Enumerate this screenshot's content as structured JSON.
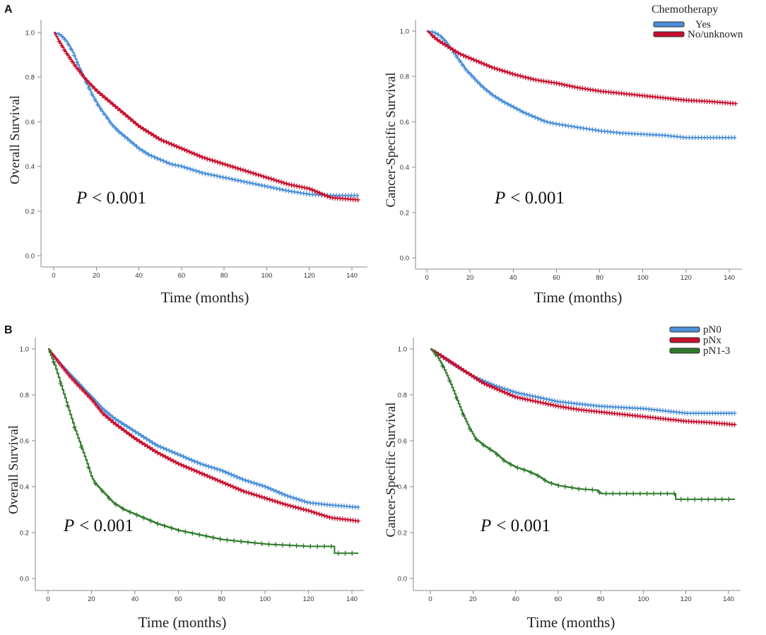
{
  "panels": [
    {
      "label": "A",
      "legend_title": "Chemotherapy"
    },
    {
      "label": "B"
    }
  ],
  "chart_data": [
    {
      "type": "line",
      "title": "",
      "xlabel": "Time (months)",
      "ylabel": "Overall Survival",
      "xlim": [
        0,
        140
      ],
      "ylim": [
        0,
        1
      ],
      "xticks": [
        0,
        20,
        40,
        60,
        80,
        100,
        120,
        140
      ],
      "xtick_labels": [
        "0",
        "20",
        "40",
        "60",
        "80",
        "100",
        "120",
        "140"
      ],
      "yticks": [
        0,
        0.2,
        0.4,
        0.6,
        0.8,
        1.0
      ],
      "ytick_labels": [
        "0.0",
        "0.2",
        "0.4",
        "0.6",
        "0.8",
        "1.0"
      ],
      "annotation": {
        "symbol": "P",
        "value": "< 0.001"
      },
      "series": [
        {
          "name": "Yes",
          "color": "#4b8fd8",
          "x": [
            0,
            3,
            6,
            9,
            12,
            15,
            18,
            21,
            24,
            27,
            30,
            35,
            40,
            45,
            50,
            55,
            60,
            70,
            80,
            90,
            100,
            110,
            120,
            130,
            143
          ],
          "y": [
            1.0,
            0.99,
            0.96,
            0.91,
            0.84,
            0.78,
            0.72,
            0.67,
            0.63,
            0.59,
            0.56,
            0.52,
            0.48,
            0.45,
            0.43,
            0.41,
            0.4,
            0.37,
            0.35,
            0.33,
            0.31,
            0.29,
            0.275,
            0.27,
            0.27
          ]
        },
        {
          "name": "No/unknown",
          "color": "#c8102e",
          "x": [
            0,
            5,
            10,
            15,
            20,
            25,
            30,
            40,
            50,
            60,
            70,
            80,
            90,
            100,
            110,
            120,
            125,
            130,
            143
          ],
          "y": [
            1.0,
            0.92,
            0.85,
            0.79,
            0.74,
            0.7,
            0.66,
            0.58,
            0.52,
            0.48,
            0.44,
            0.41,
            0.38,
            0.35,
            0.32,
            0.3,
            0.28,
            0.26,
            0.25
          ]
        }
      ]
    },
    {
      "type": "line",
      "title": "",
      "xlabel": "Time (months)",
      "ylabel": "Cancer-Specific Survival",
      "xlim": [
        0,
        140
      ],
      "ylim": [
        0,
        1
      ],
      "xticks": [
        0,
        20,
        40,
        60,
        80,
        100,
        120,
        140
      ],
      "xtick_labels": [
        "0",
        "20",
        "40",
        "60",
        "80",
        "100",
        "120",
        "140"
      ],
      "yticks": [
        0,
        0.2,
        0.4,
        0.6,
        0.8,
        1.0
      ],
      "ytick_labels": [
        "0.0",
        "0.2",
        "0.4",
        "0.6",
        "0.8",
        "1.0"
      ],
      "annotation": {
        "symbol": "P",
        "value": "< 0.001"
      },
      "series": [
        {
          "name": "Yes",
          "color": "#4b8fd8",
          "x": [
            0,
            3,
            6,
            9,
            12,
            15,
            18,
            21,
            25,
            30,
            35,
            40,
            45,
            50,
            55,
            60,
            70,
            80,
            90,
            100,
            110,
            120,
            143
          ],
          "y": [
            1.0,
            0.995,
            0.98,
            0.95,
            0.91,
            0.87,
            0.83,
            0.8,
            0.76,
            0.72,
            0.69,
            0.665,
            0.64,
            0.62,
            0.6,
            0.59,
            0.575,
            0.56,
            0.55,
            0.545,
            0.54,
            0.53,
            0.53
          ]
        },
        {
          "name": "No/unknown",
          "color": "#c8102e",
          "x": [
            0,
            5,
            10,
            15,
            20,
            30,
            40,
            50,
            60,
            70,
            80,
            90,
            100,
            110,
            120,
            130,
            143
          ],
          "y": [
            1.0,
            0.96,
            0.93,
            0.9,
            0.88,
            0.84,
            0.81,
            0.785,
            0.77,
            0.75,
            0.735,
            0.725,
            0.715,
            0.705,
            0.695,
            0.69,
            0.68
          ]
        }
      ]
    },
    {
      "type": "line",
      "title": "",
      "xlabel": "Time (months)",
      "ylabel": "Overall Survival",
      "xlim": [
        0,
        140
      ],
      "ylim": [
        0,
        1
      ],
      "xticks": [
        0,
        20,
        40,
        60,
        80,
        100,
        120,
        140
      ],
      "xtick_labels": [
        "0",
        "20",
        "40",
        "60",
        "80",
        "100",
        "120",
        "140"
      ],
      "yticks": [
        0,
        0.2,
        0.4,
        0.6,
        0.8,
        1.0
      ],
      "ytick_labels": [
        "0.0",
        "0.2",
        "0.4",
        "0.6",
        "0.8",
        "1.0"
      ],
      "annotation": {
        "symbol": "P",
        "value": "< 0.001"
      },
      "series": [
        {
          "name": "pN0",
          "color": "#4b8fd8",
          "x": [
            0,
            5,
            10,
            15,
            20,
            25,
            30,
            40,
            50,
            60,
            70,
            80,
            90,
            100,
            110,
            120,
            130,
            143
          ],
          "y": [
            1.0,
            0.94,
            0.89,
            0.84,
            0.79,
            0.74,
            0.7,
            0.64,
            0.58,
            0.54,
            0.5,
            0.47,
            0.43,
            0.4,
            0.36,
            0.33,
            0.32,
            0.31
          ]
        },
        {
          "name": "pNx",
          "color": "#c8102e",
          "x": [
            0,
            5,
            10,
            15,
            20,
            25,
            30,
            40,
            50,
            60,
            70,
            80,
            90,
            100,
            110,
            120,
            130,
            143
          ],
          "y": [
            1.0,
            0.94,
            0.88,
            0.83,
            0.78,
            0.72,
            0.68,
            0.61,
            0.55,
            0.5,
            0.46,
            0.42,
            0.38,
            0.35,
            0.32,
            0.295,
            0.265,
            0.25
          ]
        },
        {
          "name": "pN1-3",
          "color": "#2f7a2a",
          "x": [
            0,
            3,
            6,
            9,
            12,
            15,
            18,
            20,
            22,
            25,
            30,
            35,
            40,
            45,
            50,
            60,
            70,
            80,
            90,
            100,
            110,
            120,
            131.5,
            132,
            143
          ],
          "y": [
            1.0,
            0.93,
            0.84,
            0.75,
            0.66,
            0.58,
            0.5,
            0.44,
            0.41,
            0.38,
            0.33,
            0.3,
            0.28,
            0.26,
            0.24,
            0.21,
            0.19,
            0.17,
            0.16,
            0.15,
            0.145,
            0.14,
            0.14,
            0.11,
            0.11
          ]
        }
      ]
    },
    {
      "type": "line",
      "title": "",
      "xlabel": "Time (months)",
      "ylabel": "Cancer-Specific Survival",
      "xlim": [
        0,
        140
      ],
      "ylim": [
        0,
        1
      ],
      "xticks": [
        0,
        20,
        40,
        60,
        80,
        100,
        120,
        140
      ],
      "xtick_labels": [
        "0",
        "20",
        "40",
        "60",
        "80",
        "100",
        "120",
        "140"
      ],
      "yticks": [
        0,
        0.2,
        0.4,
        0.6,
        0.8,
        1.0
      ],
      "ytick_labels": [
        "0.0",
        "0.2",
        "0.4",
        "0.6",
        "0.8",
        "1.0"
      ],
      "annotation": {
        "symbol": "P",
        "value": "< 0.001"
      },
      "series": [
        {
          "name": "pN0",
          "color": "#4b8fd8",
          "x": [
            0,
            5,
            10,
            15,
            20,
            25,
            30,
            40,
            50,
            60,
            70,
            80,
            90,
            100,
            110,
            120,
            143
          ],
          "y": [
            1.0,
            0.97,
            0.94,
            0.91,
            0.88,
            0.86,
            0.84,
            0.81,
            0.79,
            0.77,
            0.76,
            0.75,
            0.745,
            0.74,
            0.73,
            0.72,
            0.72
          ]
        },
        {
          "name": "pNx",
          "color": "#c8102e",
          "x": [
            0,
            5,
            10,
            15,
            20,
            25,
            30,
            40,
            50,
            60,
            70,
            80,
            90,
            100,
            110,
            120,
            130,
            143
          ],
          "y": [
            1.0,
            0.97,
            0.94,
            0.91,
            0.88,
            0.85,
            0.83,
            0.79,
            0.77,
            0.75,
            0.735,
            0.725,
            0.715,
            0.705,
            0.695,
            0.685,
            0.68,
            0.67
          ]
        },
        {
          "name": "pN1-3",
          "color": "#2f7a2a",
          "x": [
            0,
            3,
            6,
            9,
            12,
            15,
            18,
            21,
            25,
            30,
            35,
            40,
            45,
            50,
            55,
            60,
            70,
            78,
            80,
            114.5,
            115,
            143
          ],
          "y": [
            1.0,
            0.97,
            0.92,
            0.86,
            0.79,
            0.72,
            0.66,
            0.61,
            0.58,
            0.55,
            0.51,
            0.485,
            0.47,
            0.45,
            0.42,
            0.405,
            0.39,
            0.385,
            0.37,
            0.37,
            0.345,
            0.345
          ]
        }
      ]
    }
  ]
}
